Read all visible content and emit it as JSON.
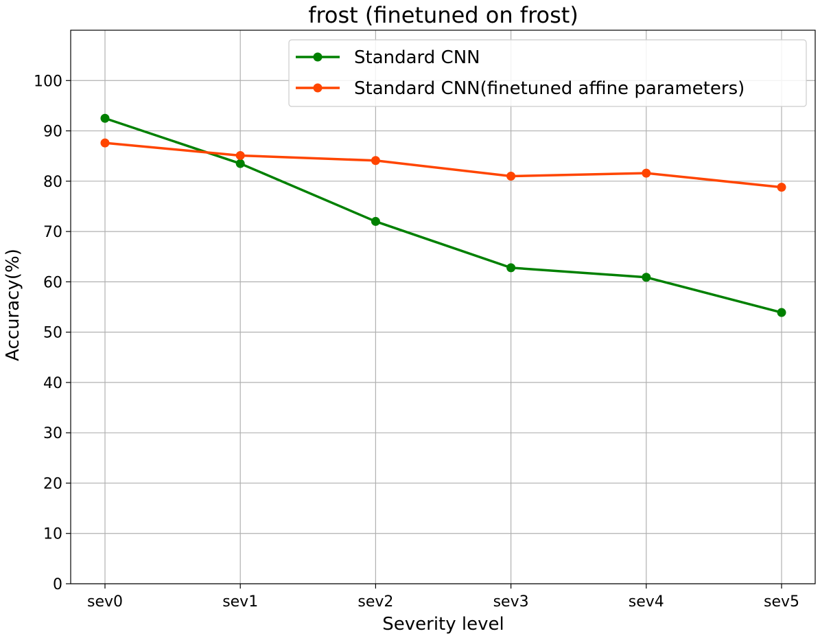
{
  "chart_data": {
    "type": "line",
    "title": "frost (finetuned on frost)",
    "xlabel": "Severity level",
    "ylabel": "Accuracy(%)",
    "categories": [
      "sev0",
      "sev1",
      "sev2",
      "sev3",
      "sev4",
      "sev5"
    ],
    "ylim": [
      0,
      110
    ],
    "yticks": [
      0,
      10,
      20,
      30,
      40,
      50,
      60,
      70,
      80,
      90,
      100
    ],
    "grid": true,
    "legend_position": "top-right",
    "series": [
      {
        "name": "Standard CNN",
        "color": "#008000",
        "values": [
          92.5,
          83.5,
          72.0,
          62.8,
          60.9,
          53.9
        ]
      },
      {
        "name": "Standard CNN(finetuned affine parameters)",
        "color": "#ff4500",
        "values": [
          87.6,
          85.1,
          84.1,
          81.0,
          81.6,
          78.8
        ]
      }
    ]
  }
}
